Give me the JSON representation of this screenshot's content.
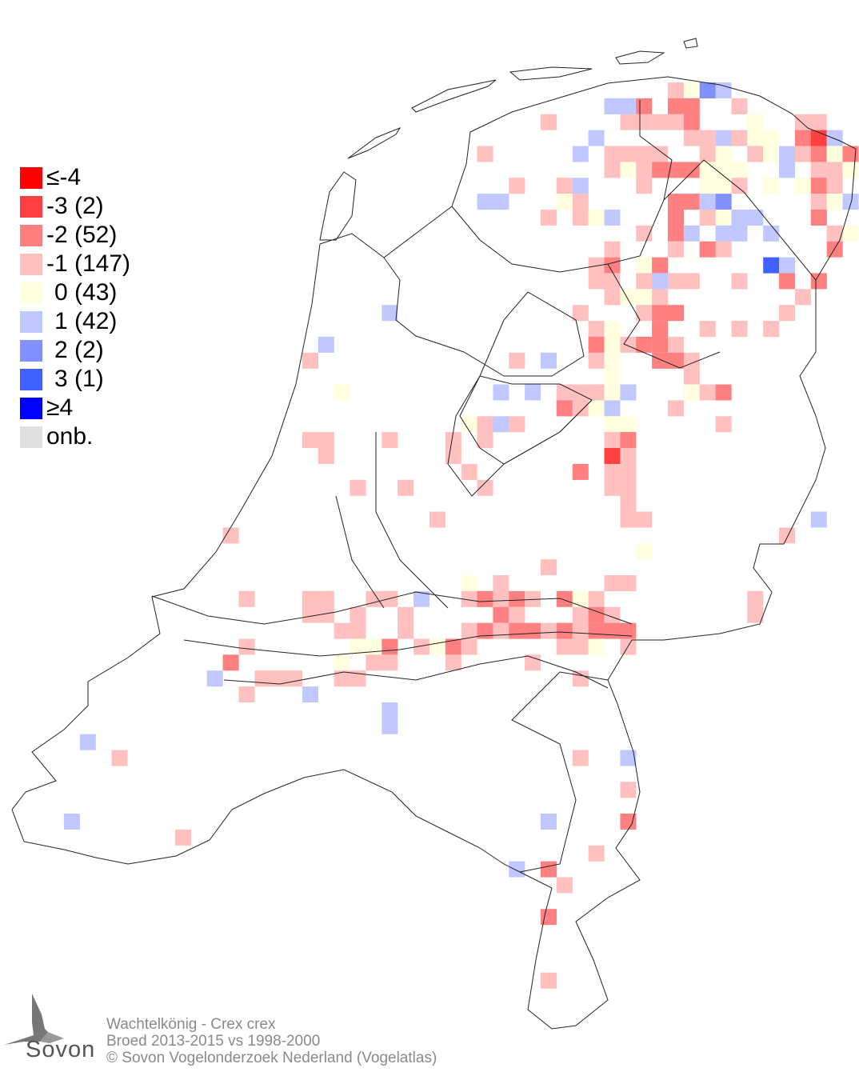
{
  "legend": {
    "items": [
      {
        "label": "≤-4",
        "color": "#ff0000",
        "indent": false
      },
      {
        "label": "-3 (2)",
        "color": "#ff4040",
        "indent": false
      },
      {
        "label": "-2 (52)",
        "color": "#ff8080",
        "indent": false
      },
      {
        "label": "-1 (147)",
        "color": "#ffc0c0",
        "indent": false
      },
      {
        "label": "0 (43)",
        "color": "#ffffe0",
        "indent": true
      },
      {
        "label": "1 (42)",
        "color": "#c0c8ff",
        "indent": true
      },
      {
        "label": "2 (2)",
        "color": "#8090ff",
        "indent": true
      },
      {
        "label": "3 (1)",
        "color": "#4060ff",
        "indent": true
      },
      {
        "label": "≥4",
        "color": "#0000ff",
        "indent": false
      },
      {
        "label": "onb.",
        "color": "#e0e0e0",
        "indent": false
      }
    ]
  },
  "footer": {
    "species": "Wachtelkönig - Crex crex",
    "period": "Broed 2013-2015 vs 1998-2000",
    "copyright": "© Sovon Vogelonderzoek Nederland (Vogelatlas)"
  },
  "logo": {
    "text": "Sovon"
  },
  "map": {
    "outline_color": "#000000",
    "background": "#ffffff"
  }
}
